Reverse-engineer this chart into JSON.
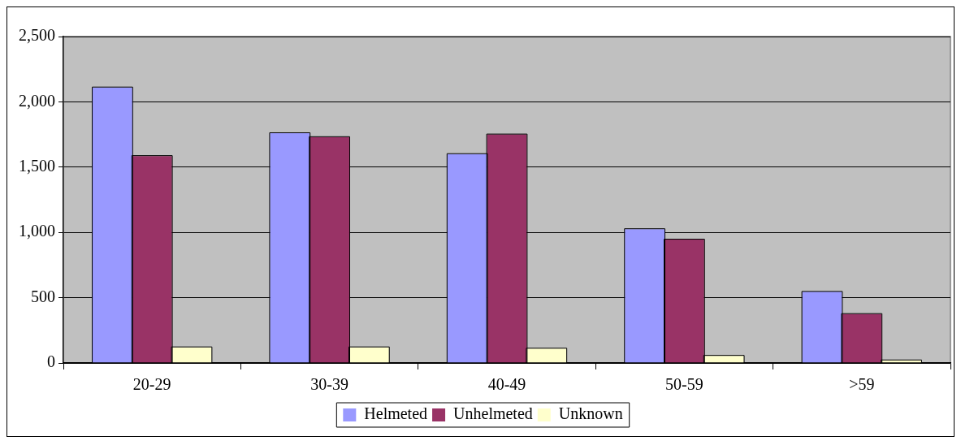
{
  "chart_data": {
    "type": "bar",
    "categories": [
      "20-29",
      "30-39",
      "40-49",
      "50-59",
      ">59"
    ],
    "series": [
      {
        "name": "Helmeted",
        "color": "#9999ff",
        "values": [
          2110,
          1760,
          1600,
          1025,
          545
        ]
      },
      {
        "name": "Unhelmeted",
        "color": "#993366",
        "values": [
          1585,
          1730,
          1750,
          945,
          375
        ]
      },
      {
        "name": "Unknown",
        "color": "#ffffcc",
        "values": [
          120,
          120,
          110,
          55,
          20
        ]
      }
    ],
    "ylim": [
      0,
      2500
    ],
    "yticks": [
      {
        "value": 0,
        "label": "0"
      },
      {
        "value": 500,
        "label": "500"
      },
      {
        "value": 1000,
        "label": "1,000"
      },
      {
        "value": 1500,
        "label": "1,500"
      },
      {
        "value": 2000,
        "label": "2,000"
      },
      {
        "value": 2500,
        "label": "2,500"
      }
    ],
    "grid": "y",
    "legend": "bottom"
  }
}
